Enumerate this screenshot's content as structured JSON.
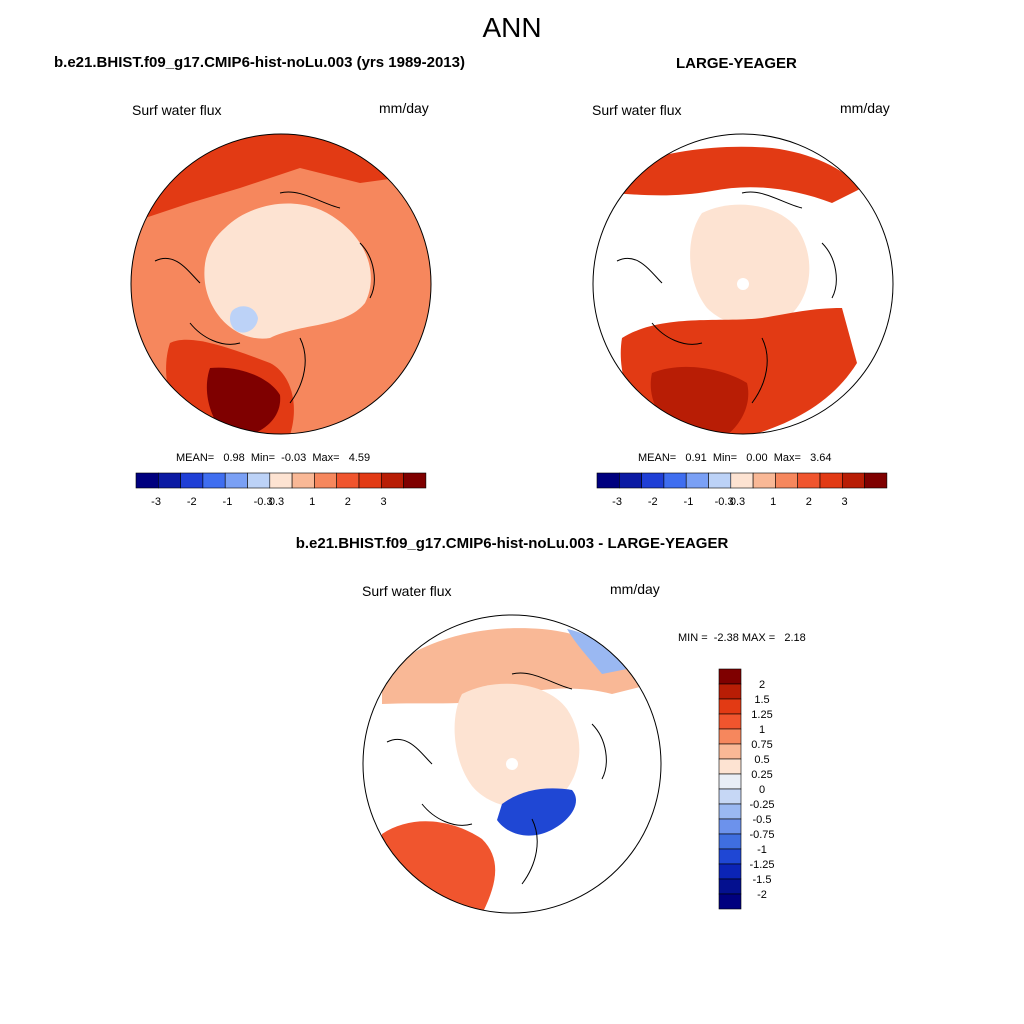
{
  "title": "ANN",
  "panels": [
    {
      "case_title": "b.e21.BHIST.f09_g17.CMIP6-hist-noLu.003 (yrs 1989-2013)",
      "variable": "Surf water flux",
      "units": "mm/day",
      "stats": "MEAN=   0.98  Min=  -0.03  Max=   4.59",
      "colorbar_ticks": [
        "-3",
        "-2",
        "-1",
        "-0.3",
        "0.3",
        "1",
        "2",
        "3"
      ]
    },
    {
      "case_title": "LARGE-YEAGER",
      "variable": "Surf water flux",
      "units": "mm/day",
      "stats": "MEAN=   0.91  Min=   0.00  Max=   3.64",
      "colorbar_ticks": [
        "-3",
        "-2",
        "-1",
        "-0.3",
        "0.3",
        "1",
        "2",
        "3"
      ]
    },
    {
      "case_title": "b.e21.BHIST.f09_g17.CMIP6-hist-noLu.003 - LARGE-YEAGER",
      "variable": "Surf water flux",
      "units": "mm/day",
      "stats": "MIN =  -2.38 MAX =   2.18",
      "colorbar_ticks": [
        "2",
        "1.5",
        "1.25",
        "1",
        "0.75",
        "0.5",
        "0.25",
        "0",
        "-0.25",
        "-0.5",
        "-0.75",
        "-1",
        "-1.25",
        "-1.5",
        "-2"
      ]
    }
  ],
  "colors": {
    "abs_scale": [
      "#00007f",
      "#0b1aa3",
      "#1f3fd6",
      "#3f6ef0",
      "#7aa0f5",
      "#bcd2f7",
      "#fde3d2",
      "#f9b896",
      "#f6875d",
      "#f0552e",
      "#e23a14",
      "#b81d05",
      "#7f0000"
    ],
    "diff_scale": [
      "#7f0000",
      "#b81d05",
      "#e23a14",
      "#f0552e",
      "#f6875d",
      "#f9b896",
      "#fde3d2",
      "#e9eef6",
      "#c6d7f5",
      "#9ab8f2",
      "#6c92ec",
      "#3f6ee0",
      "#1f47d4",
      "#0b24b6",
      "#04108f",
      "#00007f"
    ],
    "land_light": "#fde3d2",
    "ocean_mid": "#f6875d",
    "ocean_strong": "#e23a14",
    "ocean_max": "#b81d05"
  }
}
